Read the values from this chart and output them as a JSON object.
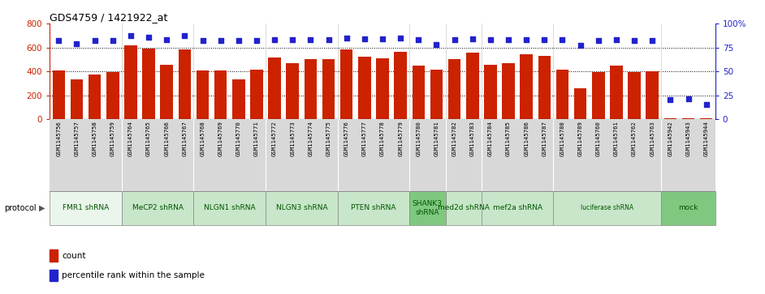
{
  "title": "GDS4759 / 1421922_at",
  "samples": [
    "GSM1145756",
    "GSM1145757",
    "GSM1145758",
    "GSM1145759",
    "GSM1145764",
    "GSM1145765",
    "GSM1145766",
    "GSM1145767",
    "GSM1145768",
    "GSM1145769",
    "GSM1145770",
    "GSM1145771",
    "GSM1145772",
    "GSM1145773",
    "GSM1145774",
    "GSM1145775",
    "GSM1145776",
    "GSM1145777",
    "GSM1145778",
    "GSM1145779",
    "GSM1145780",
    "GSM1145781",
    "GSM1145782",
    "GSM1145783",
    "GSM1145784",
    "GSM1145785",
    "GSM1145786",
    "GSM1145787",
    "GSM1145788",
    "GSM1145789",
    "GSM1145760",
    "GSM1145761",
    "GSM1145762",
    "GSM1145763",
    "GSM1145942",
    "GSM1145943",
    "GSM1145944"
  ],
  "counts": [
    410,
    335,
    375,
    395,
    620,
    590,
    455,
    580,
    405,
    410,
    335,
    415,
    515,
    470,
    500,
    505,
    580,
    525,
    510,
    565,
    450,
    415,
    505,
    555,
    455,
    465,
    540,
    530,
    415,
    260,
    395,
    450,
    395,
    400,
    10,
    10,
    10
  ],
  "percentiles": [
    82,
    79,
    82,
    82,
    87,
    86,
    83,
    87,
    82,
    82,
    82,
    82,
    83,
    83,
    83,
    83,
    85,
    84,
    84,
    85,
    83,
    78,
    83,
    84,
    83,
    83,
    83,
    83,
    83,
    77,
    82,
    83,
    82,
    82,
    20,
    21,
    15
  ],
  "protocols": [
    {
      "label": "FMR1 shRNA",
      "start": 0,
      "end": 4,
      "color": "#eaf5eb"
    },
    {
      "label": "MeCP2 shRNA",
      "start": 4,
      "end": 8,
      "color": "#c8e6c9"
    },
    {
      "label": "NLGN1 shRNA",
      "start": 8,
      "end": 12,
      "color": "#c8e6c9"
    },
    {
      "label": "NLGN3 shRNA",
      "start": 12,
      "end": 16,
      "color": "#c8e6c9"
    },
    {
      "label": "PTEN shRNA",
      "start": 16,
      "end": 20,
      "color": "#c8e6c9"
    },
    {
      "label": "SHANK3\nshRNA",
      "start": 20,
      "end": 22,
      "color": "#80c880"
    },
    {
      "label": "med2d shRNA",
      "start": 22,
      "end": 24,
      "color": "#c8e6c9"
    },
    {
      "label": "mef2a shRNA",
      "start": 24,
      "end": 28,
      "color": "#c8e6c9"
    },
    {
      "label": "luciferase shRNA",
      "start": 28,
      "end": 34,
      "color": "#c8e6c9"
    },
    {
      "label": "mock",
      "start": 34,
      "end": 37,
      "color": "#80c880"
    }
  ],
  "bar_color": "#cc2200",
  "dot_color": "#2222cc",
  "ylim_left": [
    0,
    800
  ],
  "ylim_right": [
    0,
    100
  ],
  "yticks_left": [
    0,
    200,
    400,
    600,
    800
  ],
  "yticks_right": [
    0,
    25,
    50,
    75,
    100
  ],
  "background_color": "#ffffff",
  "xtick_bg": "#d8d8d8",
  "proto_border": "#888888",
  "grid_color": "#222222",
  "group_bounds": [
    0,
    4,
    8,
    12,
    16,
    20,
    22,
    24,
    28,
    34,
    37
  ]
}
